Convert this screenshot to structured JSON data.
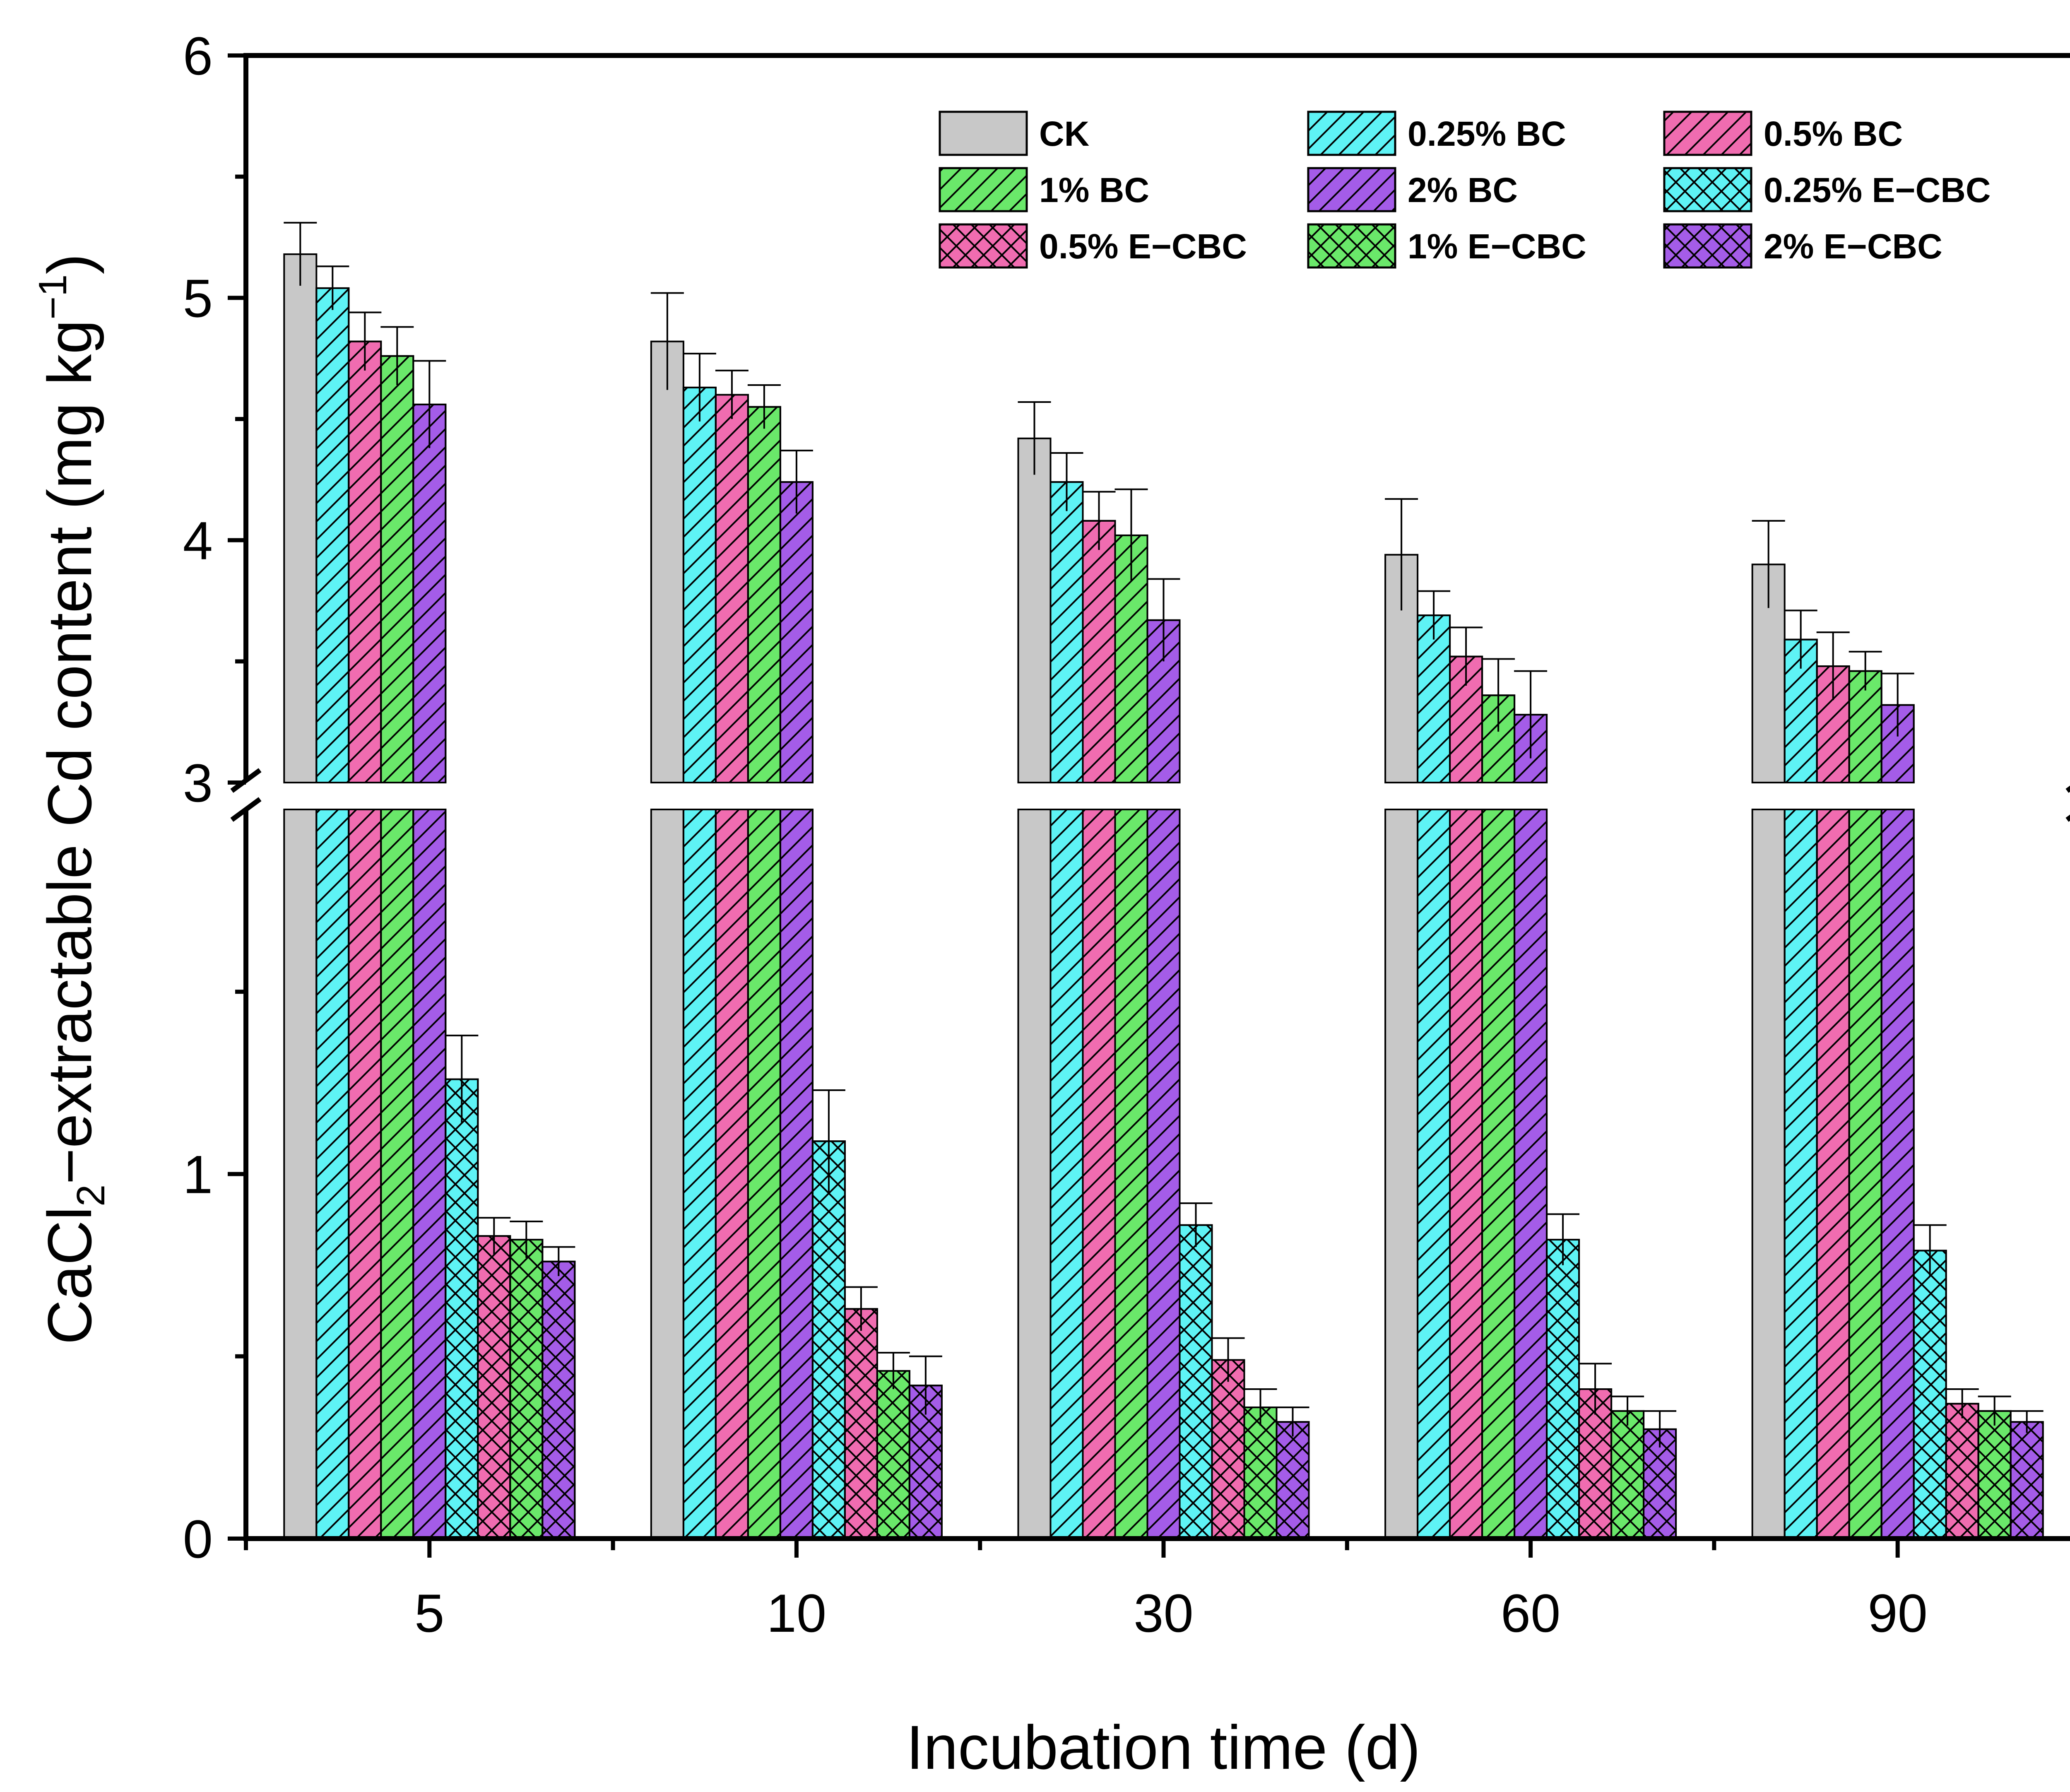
{
  "chart_data": {
    "type": "bar",
    "title": "",
    "xlabel": "Incubation time (d)",
    "ylabel": {
      "main": "CaCl",
      "sub": "2",
      "rest": "−extractable Cd content (mg kg",
      "sup": "−1",
      "close": ")"
    },
    "categories": [
      "5",
      "10",
      "30",
      "60",
      "90"
    ],
    "y_axis_break": {
      "lower_range": [
        0,
        2
      ],
      "upper_range": [
        3,
        6
      ],
      "lower_ticks": [
        "0",
        "1"
      ],
      "upper_ticks": [
        "3",
        "4",
        "5",
        "6"
      ]
    },
    "legend_position": "top-right",
    "series": [
      {
        "name": "CK",
        "color": "#c8c8c8",
        "pattern": "solid",
        "values": [
          5.18,
          4.82,
          4.42,
          3.94,
          3.9
        ],
        "errors": [
          0.13,
          0.2,
          0.15,
          0.23,
          0.18
        ]
      },
      {
        "name": "0.25% BC",
        "color": "#5ef3f5",
        "pattern": "hatch",
        "values": [
          5.04,
          4.63,
          4.24,
          3.69,
          3.59
        ],
        "errors": [
          0.09,
          0.14,
          0.12,
          0.1,
          0.12
        ]
      },
      {
        "name": "0.5% BC",
        "color": "#f06cb0",
        "pattern": "hatch",
        "values": [
          4.82,
          4.6,
          4.08,
          3.52,
          3.48
        ],
        "errors": [
          0.12,
          0.1,
          0.12,
          0.12,
          0.14
        ]
      },
      {
        "name": "1% BC",
        "color": "#6ae86a",
        "pattern": "hatch",
        "values": [
          4.76,
          4.55,
          4.02,
          3.36,
          3.46
        ],
        "errors": [
          0.12,
          0.09,
          0.19,
          0.15,
          0.08
        ]
      },
      {
        "name": "2% BC",
        "color": "#a45ce8",
        "pattern": "hatch",
        "values": [
          4.56,
          4.24,
          3.67,
          3.28,
          3.32
        ],
        "errors": [
          0.18,
          0.13,
          0.17,
          0.18,
          0.13
        ]
      },
      {
        "name": "0.25% E−CBC",
        "color": "#5ef3f5",
        "pattern": "crosshatch",
        "values": [
          1.26,
          1.09,
          0.86,
          0.82,
          0.79
        ],
        "errors": [
          0.12,
          0.14,
          0.06,
          0.07,
          0.07
        ]
      },
      {
        "name": "0.5% E−CBC",
        "color": "#f06cb0",
        "pattern": "crosshatch",
        "values": [
          0.83,
          0.63,
          0.49,
          0.41,
          0.37
        ],
        "errors": [
          0.05,
          0.06,
          0.06,
          0.07,
          0.04
        ]
      },
      {
        "name": "1% E−CBC",
        "color": "#6ae86a",
        "pattern": "crosshatch",
        "values": [
          0.82,
          0.46,
          0.36,
          0.35,
          0.35
        ],
        "errors": [
          0.05,
          0.05,
          0.05,
          0.04,
          0.04
        ]
      },
      {
        "name": "2% E−CBC",
        "color": "#a45ce8",
        "pattern": "crosshatch",
        "values": [
          0.76,
          0.42,
          0.32,
          0.3,
          0.32
        ],
        "errors": [
          0.04,
          0.08,
          0.04,
          0.05,
          0.03
        ]
      }
    ]
  }
}
